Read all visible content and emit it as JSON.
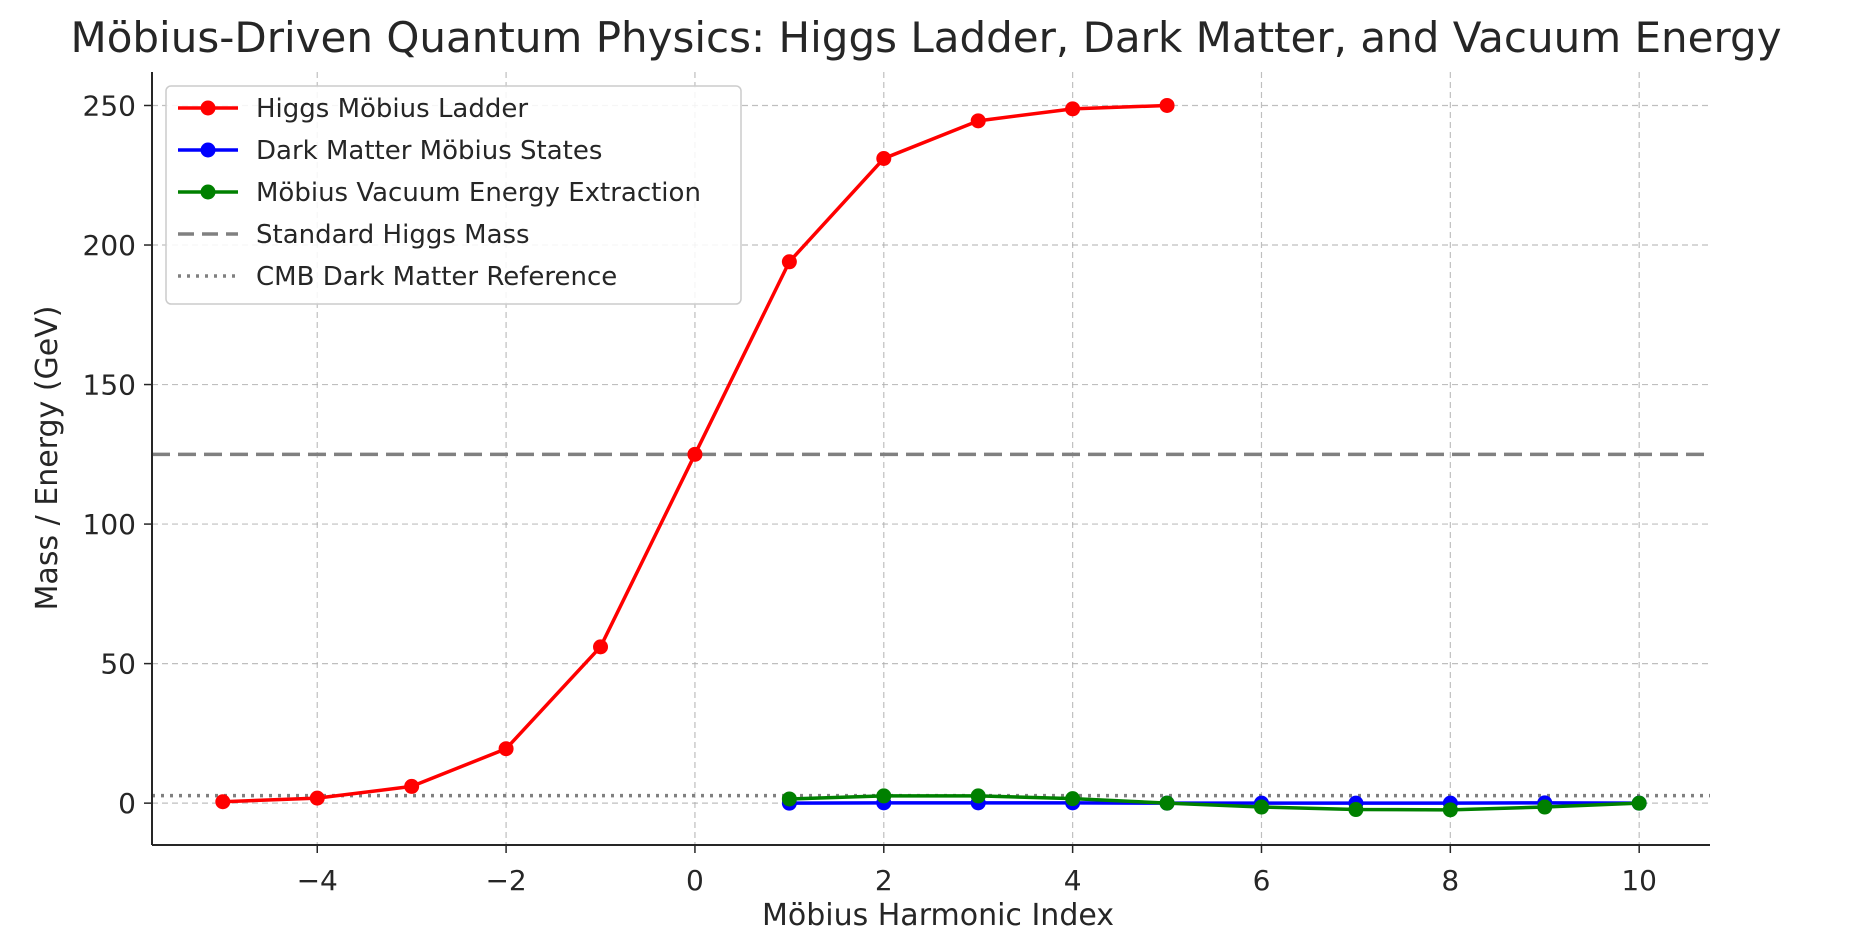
{
  "chart_data": {
    "type": "line",
    "title": "Möbius-Driven Quantum Physics: Higgs Ladder, Dark Matter, and Vacuum Energy",
    "xlabel": "Möbius Harmonic Index",
    "ylabel": "Mass / Energy (GeV)",
    "xlim": [
      -5.75,
      10.75
    ],
    "ylim": [
      -15,
      262
    ],
    "xticks": [
      -4,
      -2,
      0,
      2,
      4,
      6,
      8,
      10
    ],
    "xtick_labels": [
      "−4",
      "−2",
      "0",
      "2",
      "4",
      "6",
      "8",
      "10"
    ],
    "yticks": [
      0,
      50,
      100,
      150,
      200,
      250
    ],
    "ytick_labels": [
      "0",
      "50",
      "100",
      "150",
      "200",
      "250"
    ],
    "grid": true,
    "legend_position": "top-left",
    "series": [
      {
        "name": "Higgs Möbius Ladder",
        "color": "#ff0000",
        "style": "line-marker",
        "x": [
          -5,
          -4,
          -3,
          -2,
          -1,
          0,
          1,
          2,
          3,
          4,
          5
        ],
        "y": [
          0.5,
          1.8,
          6,
          19.5,
          56,
          125,
          194,
          231,
          244.5,
          248.8,
          250
        ]
      },
      {
        "name": "Dark Matter Möbius States",
        "color": "#0000ff",
        "style": "line-marker",
        "x": [
          1,
          2,
          3,
          4,
          5,
          6,
          7,
          8,
          9,
          10
        ],
        "y": [
          0,
          0.1,
          0.1,
          0.1,
          0,
          0,
          0,
          0,
          0.1,
          0
        ]
      },
      {
        "name": "Möbius Vacuum Energy Extraction",
        "color": "#008000",
        "style": "line-marker",
        "x": [
          1,
          2,
          3,
          4,
          5,
          6,
          7,
          8,
          9,
          10
        ],
        "y": [
          1.5,
          2.6,
          2.6,
          1.6,
          0,
          -1.4,
          -2.3,
          -2.4,
          -1.4,
          0
        ]
      },
      {
        "name": "Standard Higgs Mass",
        "color": "#808080",
        "style": "dashed-hline",
        "y": 125
      },
      {
        "name": "CMB Dark Matter Reference",
        "color": "#808080",
        "style": "dotted-hline",
        "y": 2.7
      }
    ]
  }
}
